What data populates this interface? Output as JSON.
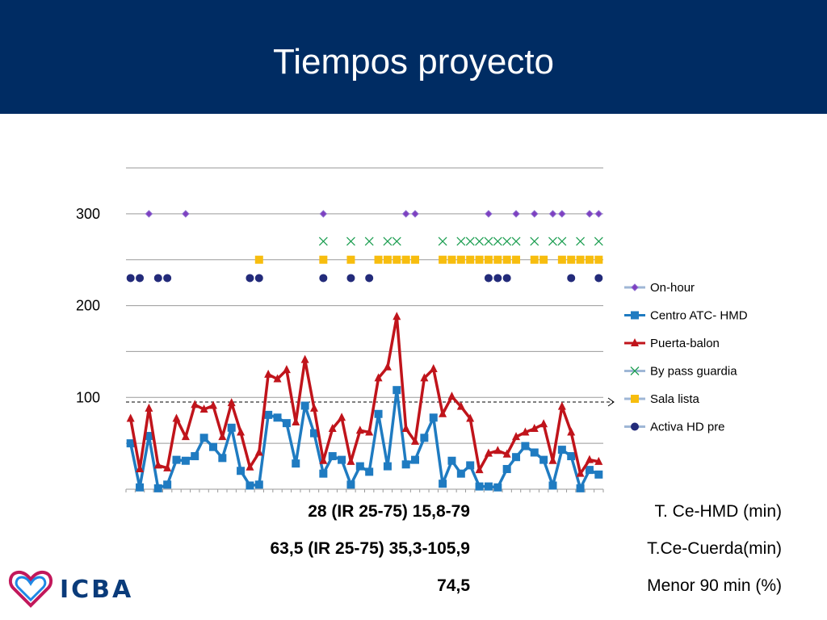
{
  "title": "Tiempos proyecto",
  "chart_data": {
    "type": "line",
    "ylim": [
      0,
      350
    ],
    "y_ticks": [
      100,
      200,
      300
    ],
    "grid": true,
    "legend_position": "right",
    "reference_line": 95,
    "x": [
      1,
      2,
      3,
      4,
      5,
      6,
      7,
      8,
      9,
      10,
      11,
      12,
      13,
      14,
      15,
      16,
      17,
      18,
      19,
      20,
      21,
      22,
      23,
      24,
      25,
      26,
      27,
      28,
      29,
      30,
      31,
      32,
      33,
      34,
      35,
      36,
      37,
      38,
      39,
      40,
      41,
      42,
      43,
      44,
      45,
      46,
      47,
      48,
      49,
      50,
      51,
      52
    ],
    "series": [
      {
        "name": "On-hour",
        "color": "#7f3fbf",
        "marker": "diamond",
        "line": false,
        "values": [
          null,
          null,
          300,
          null,
          null,
          null,
          300,
          null,
          null,
          null,
          null,
          null,
          null,
          null,
          null,
          null,
          null,
          null,
          null,
          null,
          null,
          300,
          null,
          null,
          null,
          null,
          null,
          null,
          null,
          null,
          300,
          300,
          null,
          null,
          null,
          null,
          null,
          null,
          null,
          300,
          null,
          null,
          300,
          null,
          300,
          null,
          300,
          300,
          null,
          null,
          300,
          300
        ]
      },
      {
        "name": "Centro ATC- HMD",
        "color": "#1f7bc1",
        "marker": "square",
        "line": true,
        "values": [
          50,
          2,
          58,
          1,
          5,
          32,
          31,
          36,
          56,
          46,
          34,
          67,
          20,
          4,
          5,
          81,
          78,
          72,
          28,
          91,
          61,
          17,
          36,
          32,
          5,
          25,
          19,
          82,
          25,
          108,
          27,
          32,
          56,
          78,
          6,
          31,
          17,
          26,
          3,
          3,
          2,
          22,
          35,
          47,
          40,
          32,
          4,
          43,
          36,
          1,
          21,
          16
        ]
      },
      {
        "name": "Puerta-balon",
        "color": "#c0141b",
        "marker": "triangle",
        "line": true,
        "values": [
          77,
          22,
          88,
          26,
          23,
          77,
          57,
          92,
          87,
          91,
          57,
          94,
          62,
          24,
          40,
          125,
          120,
          130,
          73,
          141,
          88,
          31,
          66,
          78,
          30,
          64,
          62,
          121,
          133,
          188,
          66,
          52,
          121,
          131,
          82,
          101,
          90,
          77,
          21,
          39,
          42,
          38,
          57,
          62,
          66,
          71,
          31,
          90,
          62,
          17,
          32,
          30
        ]
      },
      {
        "name": "By pass guardia",
        "color": "#1f9f53",
        "marker": "x",
        "line": false,
        "values": [
          null,
          null,
          null,
          null,
          null,
          null,
          null,
          null,
          null,
          null,
          null,
          null,
          null,
          null,
          null,
          null,
          null,
          null,
          null,
          null,
          null,
          270,
          null,
          null,
          270,
          null,
          270,
          null,
          270,
          270,
          null,
          null,
          null,
          null,
          270,
          null,
          270,
          270,
          270,
          270,
          270,
          270,
          270,
          null,
          270,
          null,
          270,
          270,
          null,
          270,
          null,
          270
        ]
      },
      {
        "name": "Sala lista",
        "color": "#f7bd0e",
        "marker": "square",
        "line": false,
        "values": [
          null,
          null,
          null,
          null,
          null,
          null,
          null,
          null,
          null,
          null,
          null,
          null,
          null,
          null,
          250,
          null,
          null,
          null,
          null,
          null,
          null,
          250,
          null,
          null,
          250,
          null,
          null,
          250,
          250,
          250,
          250,
          250,
          null,
          null,
          250,
          250,
          250,
          250,
          250,
          250,
          250,
          250,
          250,
          null,
          250,
          250,
          null,
          250,
          250,
          250,
          250,
          250
        ]
      },
      {
        "name": "Activa HD pre",
        "color": "#232b7a",
        "marker": "circle",
        "line": false,
        "values": [
          230,
          230,
          null,
          230,
          230,
          null,
          null,
          null,
          null,
          null,
          null,
          null,
          null,
          230,
          230,
          null,
          null,
          null,
          null,
          null,
          null,
          230,
          null,
          null,
          230,
          null,
          230,
          null,
          null,
          null,
          null,
          null,
          null,
          null,
          null,
          null,
          null,
          null,
          null,
          230,
          230,
          230,
          null,
          null,
          null,
          null,
          null,
          null,
          230,
          null,
          null,
          230
        ]
      }
    ]
  },
  "stats": [
    {
      "value": "28 (IR 25-75) 15,8-79",
      "label": "T. Ce-HMD (min)"
    },
    {
      "value": "63,5 (IR 25-75) 35,3-105,9",
      "label": "T.Ce-Cuerda(min)"
    },
    {
      "value": "74,5",
      "label": "Menor 90 min (%)"
    }
  ],
  "logo": {
    "text": "ICBA"
  }
}
